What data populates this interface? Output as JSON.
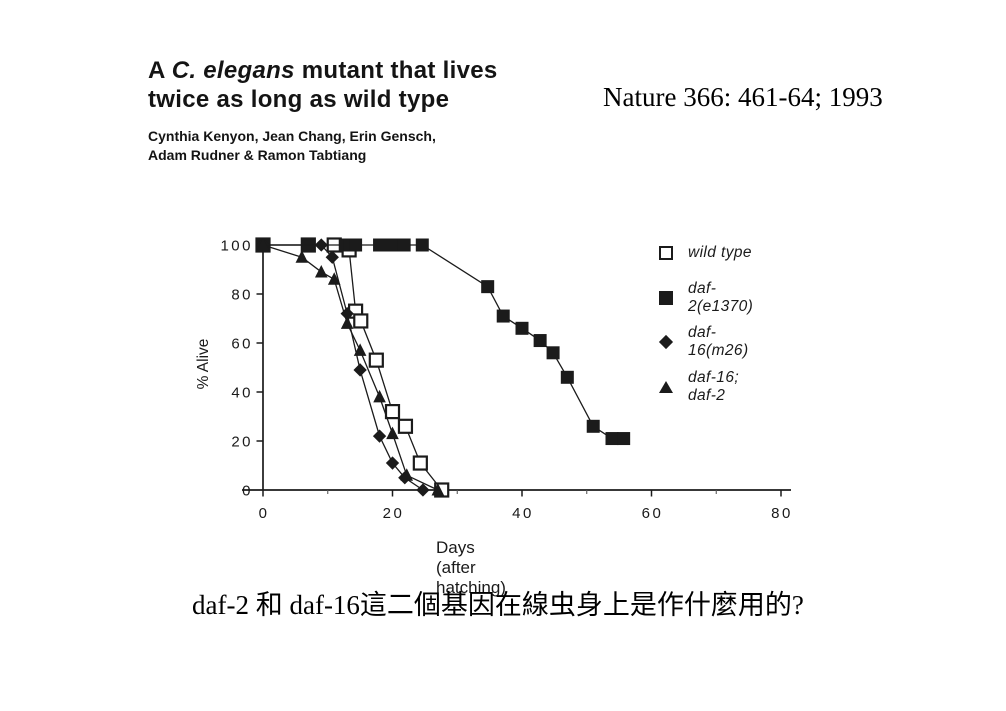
{
  "colors": {
    "ink": "#1b1b1b",
    "background": "#ffffff"
  },
  "slide": {
    "title_line1_pre": "A ",
    "title_italic": "C. elegans",
    "title_line1_post": " mutant that lives",
    "title_line2": "twice as long as wild type",
    "authors_line1": "Cynthia Kenyon, Jean Chang, Erin Gensch,",
    "authors_line2": "Adam Rudner & Ramon Tabtiang",
    "citation": "Nature 366: 461-64; 1993",
    "question": "daf-2 和 daf-16這二個基因在線虫身上是作什麼用的?"
  },
  "chart_data": {
    "type": "line",
    "title": "",
    "xlabel": "Days (after hatching)",
    "ylabel": "% Alive",
    "xlim": [
      0,
      80
    ],
    "ylim": [
      0,
      100
    ],
    "xticks": [
      0,
      20,
      40,
      60,
      80
    ],
    "xticks_minor": [
      10,
      30,
      50,
      70
    ],
    "yticks": [
      0,
      20,
      40,
      60,
      80,
      100
    ],
    "grid": false,
    "legend_position": "right",
    "series": [
      {
        "name": "wild type",
        "marker": "open-square",
        "x": [
          0,
          7,
          11,
          13.3,
          14.3,
          15.1,
          17.5,
          20,
          22,
          24.3,
          27.6
        ],
        "y": [
          100,
          100,
          100,
          98,
          73,
          69,
          53,
          32,
          26,
          11,
          0
        ]
      },
      {
        "name": "daf-2(e1370)",
        "marker": "filled-square",
        "x": [
          0,
          7,
          12.7,
          13.5,
          14.3,
          18,
          20,
          21.8,
          24.6,
          34.7,
          37.1,
          40,
          42.8,
          44.8,
          47,
          51,
          53.9,
          55.7
        ],
        "y": [
          100,
          100,
          100,
          100,
          100,
          100,
          100,
          100,
          100,
          83,
          71,
          66,
          61,
          56,
          46,
          26,
          21,
          21
        ]
      },
      {
        "name": "daf-16(m26)",
        "marker": "filled-diamond",
        "x": [
          0,
          9,
          10.7,
          13,
          15,
          18,
          20,
          21.9,
          24.7
        ],
        "y": [
          100,
          100,
          95,
          72,
          49,
          22,
          11,
          5,
          0
        ]
      },
      {
        "name": "daf-16; daf-2",
        "marker": "filled-triangle",
        "x": [
          0,
          6,
          9,
          11,
          13,
          15,
          18,
          20,
          22.2,
          27
        ],
        "y": [
          100,
          95,
          89,
          86,
          68,
          57,
          38,
          23,
          6,
          0
        ]
      }
    ]
  }
}
